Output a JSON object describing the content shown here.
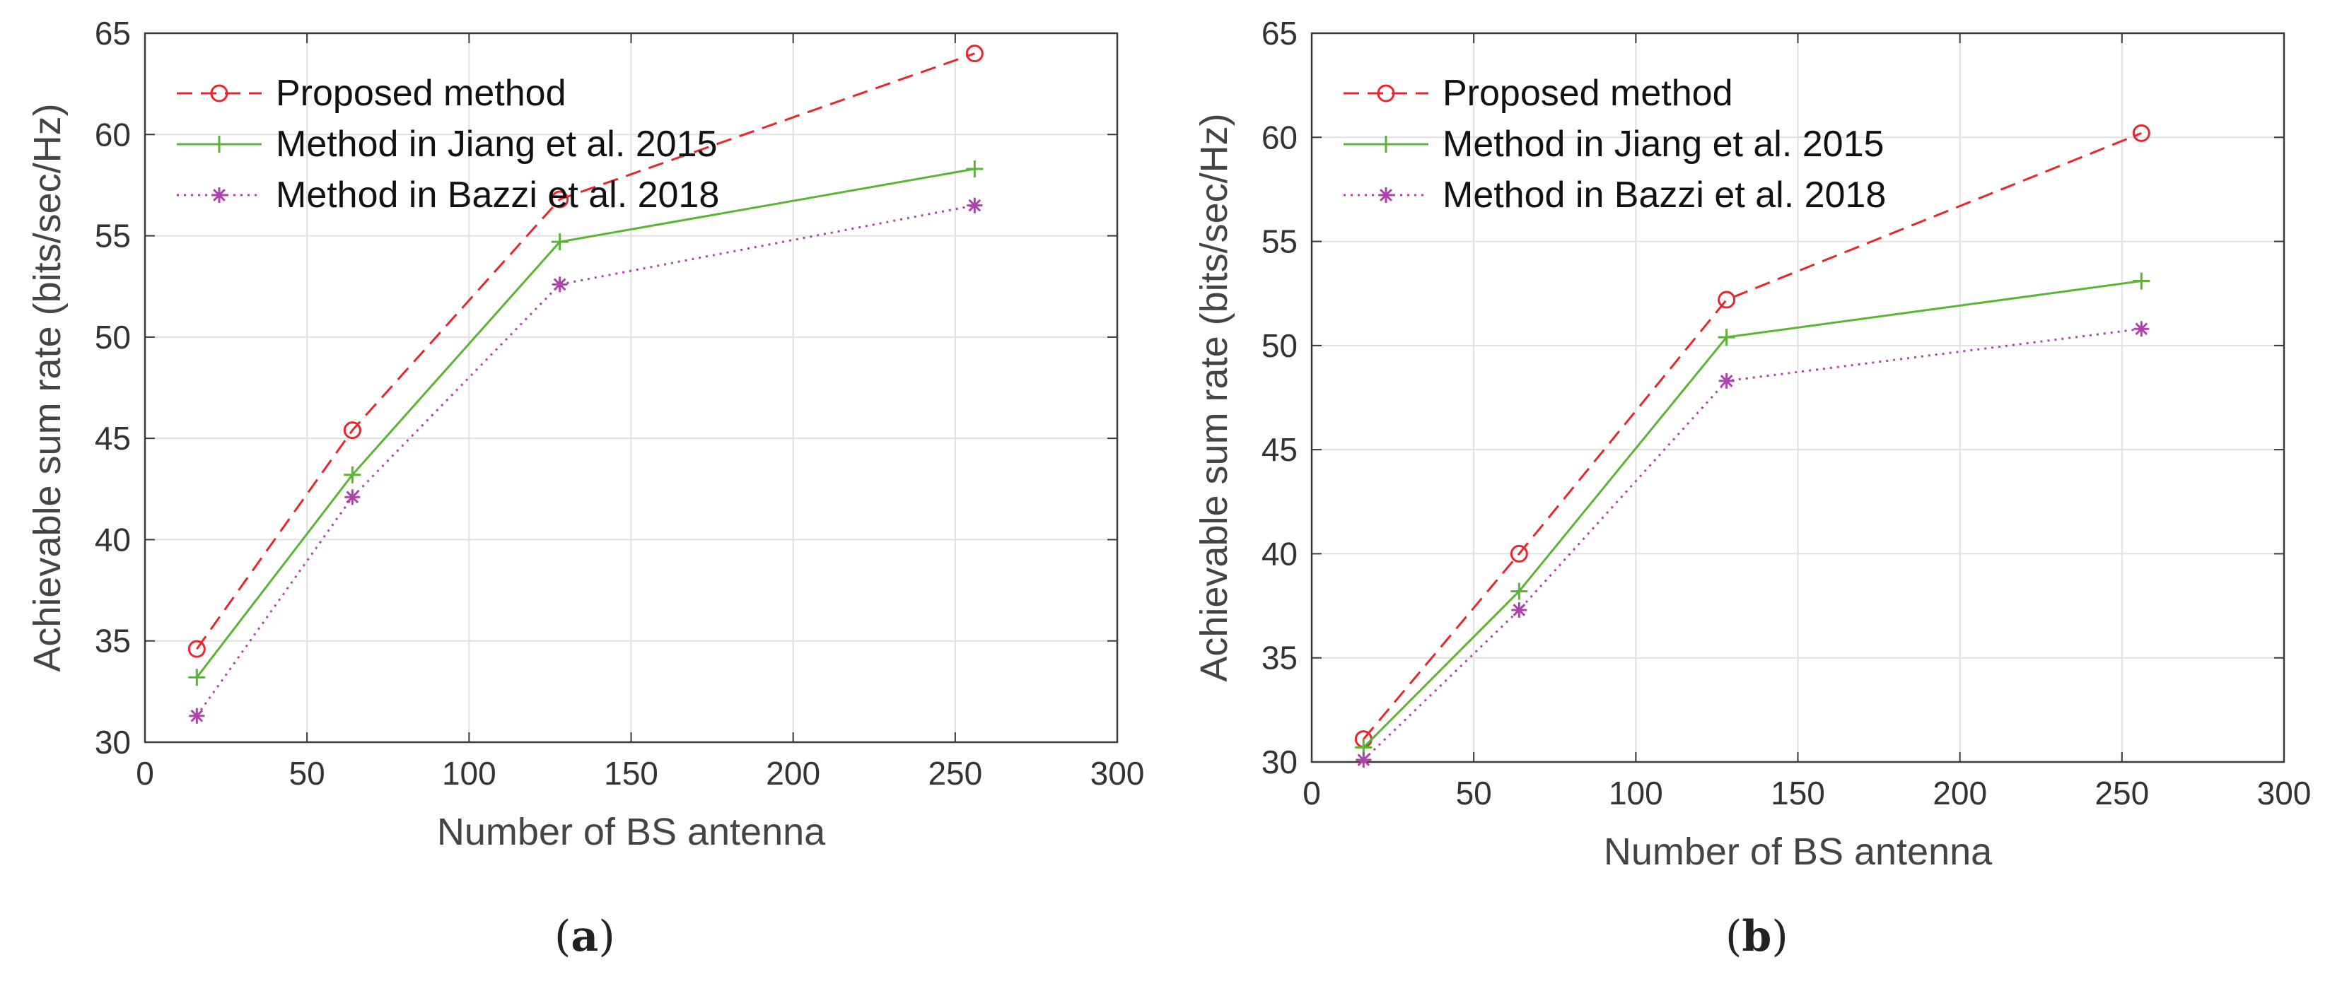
{
  "chart_data": [
    {
      "type": "line",
      "panel_label": "a",
      "xlabel": "Number of BS antenna",
      "ylabel": "Achievable sum rate (bits/sec/Hz)",
      "xlim": [
        0,
        300
      ],
      "ylim": [
        30,
        65
      ],
      "xticks": [
        0,
        50,
        100,
        150,
        200,
        250,
        300
      ],
      "yticks": [
        30,
        35,
        40,
        45,
        50,
        55,
        60,
        65
      ],
      "grid": true,
      "legend_position": "top-left",
      "x": [
        16,
        64,
        128,
        256
      ],
      "series": [
        {
          "name": "Proposed method",
          "values": [
            34.6,
            45.4,
            56.8,
            64.0
          ],
          "color": "#e8262b",
          "line": "dashed",
          "marker": "circle"
        },
        {
          "name": "Method in Jiang et al. 2015",
          "values": [
            33.2,
            43.2,
            54.7,
            58.3
          ],
          "color": "#5ab534",
          "line": "solid",
          "marker": "plus"
        },
        {
          "name": "Method in Bazzi et al. 2018",
          "values": [
            31.3,
            42.1,
            52.6,
            56.5
          ],
          "color": "#b042b0",
          "line": "dotted",
          "marker": "star"
        }
      ]
    },
    {
      "type": "line",
      "panel_label": "b",
      "xlabel": "Number of BS antenna",
      "ylabel": "Achievable sum rate (bits/sec/Hz)",
      "xlim": [
        0,
        300
      ],
      "ylim": [
        30,
        65
      ],
      "xticks": [
        0,
        50,
        100,
        150,
        200,
        250,
        300
      ],
      "yticks": [
        30,
        35,
        40,
        45,
        50,
        55,
        60,
        65
      ],
      "grid": true,
      "legend_position": "top-left",
      "x": [
        16,
        64,
        128,
        256
      ],
      "series": [
        {
          "name": "Proposed method",
          "values": [
            31.1,
            40.0,
            52.2,
            60.2
          ],
          "color": "#e8262b",
          "line": "dashed",
          "marker": "circle"
        },
        {
          "name": "Method in Jiang et al. 2015",
          "values": [
            30.7,
            38.2,
            50.4,
            53.1
          ],
          "color": "#5ab534",
          "line": "solid",
          "marker": "plus"
        },
        {
          "name": "Method in Bazzi et al. 2018",
          "values": [
            30.1,
            37.3,
            48.3,
            50.8
          ],
          "color": "#b042b0",
          "line": "dotted",
          "marker": "star"
        }
      ]
    }
  ],
  "captions": {
    "a": "a",
    "b": "b"
  }
}
